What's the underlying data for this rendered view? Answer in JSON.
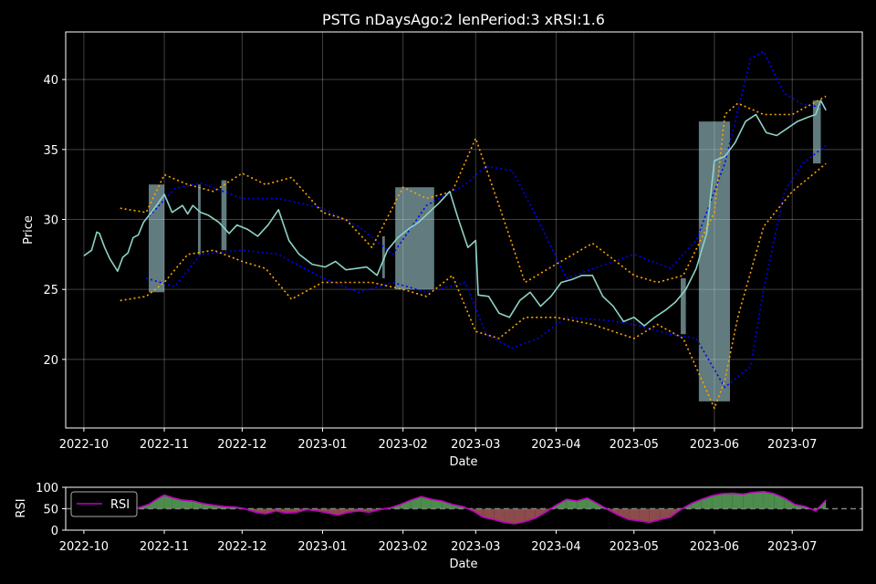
{
  "chart_data": [
    {
      "type": "line",
      "title": "PSTG nDaysAgo:2 lenPeriod:3 xRSI:1.6",
      "xlabel": "Date",
      "ylabel": "Price",
      "x_ticks": [
        "2022-10",
        "2022-11",
        "2022-12",
        "2023-01",
        "2023-02",
        "2023-03",
        "2023-04",
        "2023-05",
        "2023-06",
        "2023-07"
      ],
      "x_range": [
        "2022-09-24",
        "2023-07-28"
      ],
      "ylim": [
        15.1,
        43.4
      ],
      "y_ticks": [
        20,
        25,
        30,
        35,
        40
      ],
      "grid": true,
      "colors": {
        "price": "#8dd3c7",
        "bollinger": "#0000ff",
        "envelope": "#ffa500",
        "fill": "#b0e0e6"
      },
      "series": [
        {
          "key": "price",
          "x": [
            "2022-10-01",
            "2022-10-04",
            "2022-10-06",
            "2022-10-07",
            "2022-10-09",
            "2022-10-11",
            "2022-10-14",
            "2022-10-16",
            "2022-10-18",
            "2022-10-20",
            "2022-10-22",
            "2022-10-24",
            "2022-10-27",
            "2022-10-29",
            "2022-11-01",
            "2022-11-04",
            "2022-11-08",
            "2022-11-10",
            "2022-11-12",
            "2022-11-15",
            "2022-11-18",
            "2022-11-22",
            "2022-11-26",
            "2022-11-29",
            "2022-12-03",
            "2022-12-07",
            "2022-12-11",
            "2022-12-15",
            "2022-12-19",
            "2022-12-23",
            "2022-12-28",
            "2023-01-02",
            "2023-01-06",
            "2023-01-10",
            "2023-01-14",
            "2023-01-18",
            "2023-01-22",
            "2023-01-26",
            "2023-01-30",
            "2023-02-03",
            "2023-02-07",
            "2023-02-11",
            "2023-02-15",
            "2023-02-19",
            "2023-02-22",
            "2023-02-26",
            "2023-03-01",
            "2023-03-02",
            "2023-03-06",
            "2023-03-10",
            "2023-03-14",
            "2023-03-18",
            "2023-03-22",
            "2023-03-26",
            "2023-03-30",
            "2023-04-03",
            "2023-04-07",
            "2023-04-11",
            "2023-04-15",
            "2023-04-19",
            "2023-04-23",
            "2023-04-27",
            "2023-05-01",
            "2023-05-05",
            "2023-05-09",
            "2023-05-13",
            "2023-05-17",
            "2023-05-21",
            "2023-05-25",
            "2023-05-29",
            "2023-06-01",
            "2023-06-05",
            "2023-06-09",
            "2023-06-13",
            "2023-06-17",
            "2023-06-21",
            "2023-06-25",
            "2023-06-29",
            "2023-07-03",
            "2023-07-07",
            "2023-07-10",
            "2023-07-12",
            "2023-07-14"
          ],
          "y": [
            27.4,
            27.8,
            29.1,
            29.0,
            28.0,
            27.2,
            26.3,
            27.3,
            27.6,
            28.7,
            28.9,
            29.8,
            30.5,
            31.0,
            31.8,
            30.5,
            31.0,
            30.4,
            31.0,
            30.5,
            30.3,
            29.8,
            29.0,
            29.6,
            29.3,
            28.8,
            29.6,
            30.7,
            28.5,
            27.5,
            26.8,
            26.6,
            27.0,
            26.4,
            26.5,
            26.6,
            26.0,
            27.8,
            28.7,
            29.3,
            29.8,
            30.5,
            31.2,
            32.0,
            30.2,
            28.0,
            28.5,
            24.6,
            24.5,
            23.3,
            23.0,
            24.2,
            24.8,
            23.8,
            24.5,
            25.5,
            25.7,
            26.0,
            26.0,
            24.5,
            23.8,
            22.7,
            23.0,
            22.4,
            23.0,
            23.5,
            24.1,
            25.0,
            26.5,
            29.0,
            34.2,
            34.5,
            35.5,
            37.0,
            37.5,
            36.2,
            36.0,
            36.5,
            37.0,
            37.3,
            37.5,
            38.5,
            37.8
          ]
        },
        {
          "key": "bollinger_upper",
          "x": [
            "2022-10-25",
            "2022-11-05",
            "2022-11-15",
            "2022-12-01",
            "2022-12-15",
            "2023-01-01",
            "2023-01-15",
            "2023-01-28",
            "2023-02-10",
            "2023-02-25",
            "2023-03-05",
            "2023-03-15",
            "2023-03-25",
            "2023-04-05",
            "2023-04-20",
            "2023-05-01",
            "2023-05-15",
            "2023-05-25",
            "2023-06-05",
            "2023-06-15",
            "2023-06-20",
            "2023-06-28",
            "2023-07-05",
            "2023-07-14"
          ],
          "y": [
            30.0,
            32.2,
            32.6,
            31.5,
            31.5,
            30.8,
            29.5,
            27.5,
            31.0,
            32.5,
            33.8,
            33.5,
            30.0,
            25.8,
            26.8,
            27.5,
            26.5,
            28.5,
            34.0,
            41.5,
            42.0,
            39.0,
            38.2,
            38.0
          ]
        },
        {
          "key": "bollinger_lower",
          "x": [
            "2022-10-25",
            "2022-11-05",
            "2022-11-15",
            "2022-12-01",
            "2022-12-15",
            "2023-01-01",
            "2023-01-15",
            "2023-01-28",
            "2023-02-10",
            "2023-02-25",
            "2023-03-05",
            "2023-03-15",
            "2023-03-25",
            "2023-04-05",
            "2023-04-20",
            "2023-05-01",
            "2023-05-15",
            "2023-05-25",
            "2023-06-05",
            "2023-06-15",
            "2023-06-20",
            "2023-06-28",
            "2023-07-05",
            "2023-07-14"
          ],
          "y": [
            25.8,
            25.2,
            27.5,
            27.8,
            27.5,
            25.8,
            24.8,
            25.5,
            24.8,
            25.5,
            21.8,
            20.8,
            21.5,
            23.0,
            22.8,
            22.5,
            21.8,
            21.5,
            18.0,
            19.5,
            25.0,
            32.0,
            34.0,
            35.3
          ]
        },
        {
          "key": "envelope_upper",
          "x": [
            "2022-10-15",
            "2022-10-25",
            "2022-11-01",
            "2022-11-10",
            "2022-11-20",
            "2022-12-01",
            "2022-12-10",
            "2022-12-20",
            "2023-01-01",
            "2023-01-10",
            "2023-01-20",
            "2023-02-01",
            "2023-02-10",
            "2023-02-20",
            "2023-03-01",
            "2023-03-10",
            "2023-03-20",
            "2023-04-01",
            "2023-04-15",
            "2023-05-01",
            "2023-05-10",
            "2023-05-20",
            "2023-06-01",
            "2023-06-05",
            "2023-06-10",
            "2023-06-20",
            "2023-07-01",
            "2023-07-14"
          ],
          "y": [
            30.8,
            30.5,
            33.2,
            32.5,
            32.0,
            33.3,
            32.5,
            33.0,
            30.5,
            30.0,
            28.0,
            32.3,
            31.5,
            32.0,
            35.8,
            31.0,
            25.5,
            26.8,
            28.3,
            26.0,
            25.5,
            26.0,
            30.5,
            37.5,
            38.3,
            37.5,
            37.5,
            38.8
          ]
        },
        {
          "key": "envelope_lower",
          "x": [
            "2022-10-15",
            "2022-10-25",
            "2022-11-01",
            "2022-11-10",
            "2022-11-20",
            "2022-12-01",
            "2022-12-10",
            "2022-12-20",
            "2023-01-01",
            "2023-01-10",
            "2023-01-20",
            "2023-02-01",
            "2023-02-10",
            "2023-02-20",
            "2023-03-01",
            "2023-03-10",
            "2023-03-20",
            "2023-04-01",
            "2023-04-15",
            "2023-05-01",
            "2023-05-10",
            "2023-05-20",
            "2023-06-01",
            "2023-06-05",
            "2023-06-10",
            "2023-06-20",
            "2023-07-01",
            "2023-07-14"
          ],
          "y": [
            24.2,
            24.5,
            25.5,
            27.5,
            27.8,
            27.0,
            26.5,
            24.3,
            25.5,
            25.5,
            25.5,
            25.0,
            24.5,
            26.0,
            22.0,
            21.5,
            23.0,
            23.0,
            22.5,
            21.5,
            22.5,
            21.5,
            16.5,
            18.5,
            23.0,
            29.5,
            32.0,
            34.0
          ]
        }
      ],
      "highlight_spans": [
        {
          "from": "2022-10-26",
          "to": "2022-11-01",
          "low": 24.8,
          "high": 32.5
        },
        {
          "from": "2022-11-14",
          "to": "2022-11-15",
          "low": 27.5,
          "high": 32.5
        },
        {
          "from": "2022-11-23",
          "to": "2022-11-25",
          "low": 27.8,
          "high": 32.8
        },
        {
          "from": "2023-01-24",
          "to": "2023-01-25",
          "low": 25.8,
          "high": 28.8
        },
        {
          "from": "2023-01-29",
          "to": "2023-02-13",
          "low": 25.0,
          "high": 32.3
        },
        {
          "from": "2023-05-19",
          "to": "2023-05-21",
          "low": 21.8,
          "high": 25.8
        },
        {
          "from": "2023-05-26",
          "to": "2023-06-07",
          "low": 17.0,
          "high": 37.0
        },
        {
          "from": "2023-07-09",
          "to": "2023-07-12",
          "low": 34.0,
          "high": 38.5
        }
      ]
    },
    {
      "type": "area",
      "xlabel": "Date",
      "ylabel": "RSI",
      "ylim": [
        0,
        100
      ],
      "y_ticks": [
        0,
        50,
        100
      ],
      "reference_line": 50,
      "legend": {
        "labels": [
          "RSI"
        ],
        "placement": "top-left"
      },
      "colors": {
        "line": "#c000c0",
        "above": "#4c8c4c",
        "below": "#8c4c4c",
        "reference": "#808080"
      },
      "series": [
        {
          "name": "RSI",
          "x": [
            "2022-10-18",
            "2022-10-22",
            "2022-10-26",
            "2022-10-29",
            "2022-11-01",
            "2022-11-04",
            "2022-11-08",
            "2022-11-12",
            "2022-11-16",
            "2022-11-20",
            "2022-11-24",
            "2022-11-28",
            "2022-12-02",
            "2022-12-06",
            "2022-12-10",
            "2022-12-14",
            "2022-12-18",
            "2022-12-22",
            "2022-12-26",
            "2022-12-30",
            "2023-01-03",
            "2023-01-07",
            "2023-01-11",
            "2023-01-15",
            "2023-01-19",
            "2023-01-23",
            "2023-01-27",
            "2023-01-31",
            "2023-02-04",
            "2023-02-08",
            "2023-02-12",
            "2023-02-16",
            "2023-02-20",
            "2023-02-24",
            "2023-02-28",
            "2023-03-04",
            "2023-03-08",
            "2023-03-12",
            "2023-03-16",
            "2023-03-20",
            "2023-03-24",
            "2023-03-28",
            "2023-04-01",
            "2023-04-05",
            "2023-04-09",
            "2023-04-13",
            "2023-04-17",
            "2023-04-21",
            "2023-04-25",
            "2023-04-29",
            "2023-05-03",
            "2023-05-07",
            "2023-05-11",
            "2023-05-15",
            "2023-05-19",
            "2023-05-23",
            "2023-05-27",
            "2023-05-31",
            "2023-06-04",
            "2023-06-08",
            "2023-06-12",
            "2023-06-16",
            "2023-06-20",
            "2023-06-24",
            "2023-06-28",
            "2023-07-02",
            "2023-07-06",
            "2023-07-10",
            "2023-07-14"
          ],
          "y": [
            50,
            52,
            60,
            72,
            82,
            76,
            70,
            68,
            62,
            58,
            55,
            54,
            50,
            42,
            38,
            45,
            40,
            42,
            48,
            45,
            40,
            35,
            42,
            45,
            42,
            48,
            52,
            60,
            70,
            78,
            72,
            68,
            60,
            55,
            45,
            30,
            25,
            18,
            15,
            20,
            28,
            42,
            58,
            72,
            68,
            75,
            62,
            48,
            35,
            25,
            22,
            18,
            25,
            30,
            48,
            62,
            72,
            80,
            85,
            86,
            84,
            88,
            90,
            85,
            75,
            60,
            55,
            45,
            70
          ]
        }
      ]
    }
  ]
}
